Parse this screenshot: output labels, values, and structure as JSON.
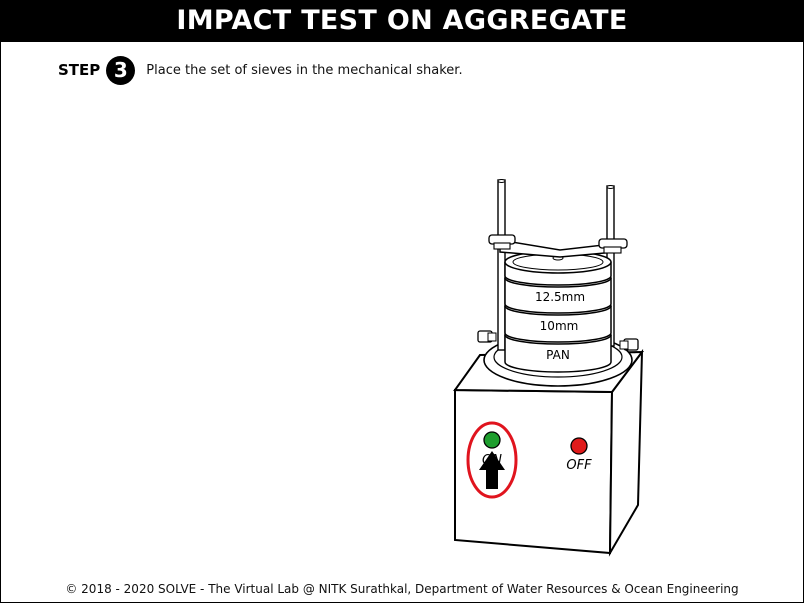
{
  "header": {
    "title": "IMPACT TEST ON AGGREGATE"
  },
  "step": {
    "label": "STEP",
    "number": "3",
    "instruction": "Place the set of sieves in the mechanical shaker."
  },
  "machine": {
    "sieves": [
      "12.5mm",
      "10mm",
      "PAN"
    ],
    "on_label": "ON",
    "off_label": "OFF",
    "on_color": "#1e9e2e",
    "off_color": "#e01b1b",
    "highlight_color": "#e0141e",
    "arrow_icon": "up-arrow-icon"
  },
  "footer": {
    "text": "© 2018 - 2020 SOLVE - The Virtual Lab @ NITK Surathkal, Department of Water Resources & Ocean Engineering"
  }
}
